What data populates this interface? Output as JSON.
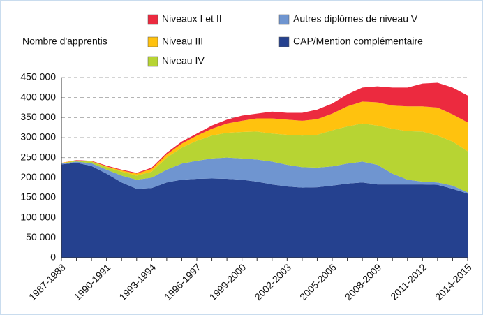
{
  "chart_data": {
    "type": "stacked_area",
    "y_label": "Nombre d'apprentis",
    "categories": [
      "1987-1988",
      null,
      null,
      "1990-1991",
      null,
      null,
      "1993-1994",
      null,
      null,
      "1996-1997",
      null,
      null,
      "1999-2000",
      null,
      null,
      "2002-2003",
      null,
      null,
      "2005-2006",
      null,
      null,
      "2008-2009",
      null,
      null,
      "2011-2012",
      null,
      null,
      "2014-2015"
    ],
    "series": [
      {
        "name": "CAP/Mention complémentaire",
        "color": "#25418f",
        "values": [
          233000,
          237000,
          229000,
          210000,
          188000,
          172000,
          174000,
          188000,
          195000,
          197000,
          198000,
          197000,
          195000,
          190000,
          183000,
          178000,
          175000,
          176000,
          180000,
          185000,
          188000,
          183000,
          183000,
          183000,
          183000,
          182000,
          172000,
          160000
        ]
      },
      {
        "name": "Autres diplômes de niveau V",
        "color": "#6f95d0",
        "values": [
          2000,
          3000,
          7000,
          10000,
          17000,
          23000,
          26000,
          32000,
          40000,
          45000,
          50000,
          53000,
          53000,
          55000,
          57000,
          54000,
          51000,
          49000,
          48000,
          50000,
          52000,
          49000,
          27000,
          12000,
          7000,
          6000,
          8000,
          3000
        ]
      },
      {
        "name": "Niveau IV",
        "color": "#b7d433",
        "values": [
          1000,
          2000,
          4000,
          6000,
          10000,
          10000,
          15000,
          30000,
          40000,
          50000,
          57000,
          62000,
          66000,
          70000,
          70000,
          75000,
          79000,
          82000,
          90000,
          93000,
          95000,
          98000,
          112000,
          121000,
          125000,
          117000,
          110000,
          103000
        ]
      },
      {
        "name": "Niveau III",
        "color": "#ffc20e",
        "values": [
          1000,
          1000,
          1000,
          2000,
          3000,
          5000,
          7000,
          8000,
          10000,
          13000,
          17000,
          23000,
          28000,
          33000,
          38000,
          38000,
          37000,
          39000,
          42000,
          50000,
          55000,
          58000,
          58000,
          62000,
          63000,
          70000,
          68000,
          72000
        ]
      },
      {
        "name": "Niveaux I et II",
        "color": "#ec2a3f",
        "values": [
          0,
          1000,
          1000,
          2000,
          2000,
          2000,
          3000,
          4000,
          5000,
          5000,
          8000,
          10000,
          13000,
          12000,
          17000,
          17000,
          20000,
          24000,
          25000,
          30000,
          35000,
          40000,
          45000,
          47000,
          57000,
          62000,
          67000,
          67000
        ]
      }
    ],
    "ylim": [
      0,
      450000
    ],
    "yticks": [
      0,
      {
        "value": 50000,
        "label": "50 000"
      },
      {
        "value": 100000,
        "label": "100 000"
      },
      {
        "value": 150000,
        "label": "150 000"
      },
      {
        "value": 200000,
        "label": "200 000"
      },
      {
        "value": 250000,
        "label": "250 000"
      },
      {
        "value": 300000,
        "label": "300 000"
      },
      {
        "value": 350000,
        "label": "350 000"
      },
      {
        "value": 400000,
        "label": "400 000"
      },
      {
        "value": 450000,
        "label": "450 000"
      }
    ],
    "grid": true
  }
}
